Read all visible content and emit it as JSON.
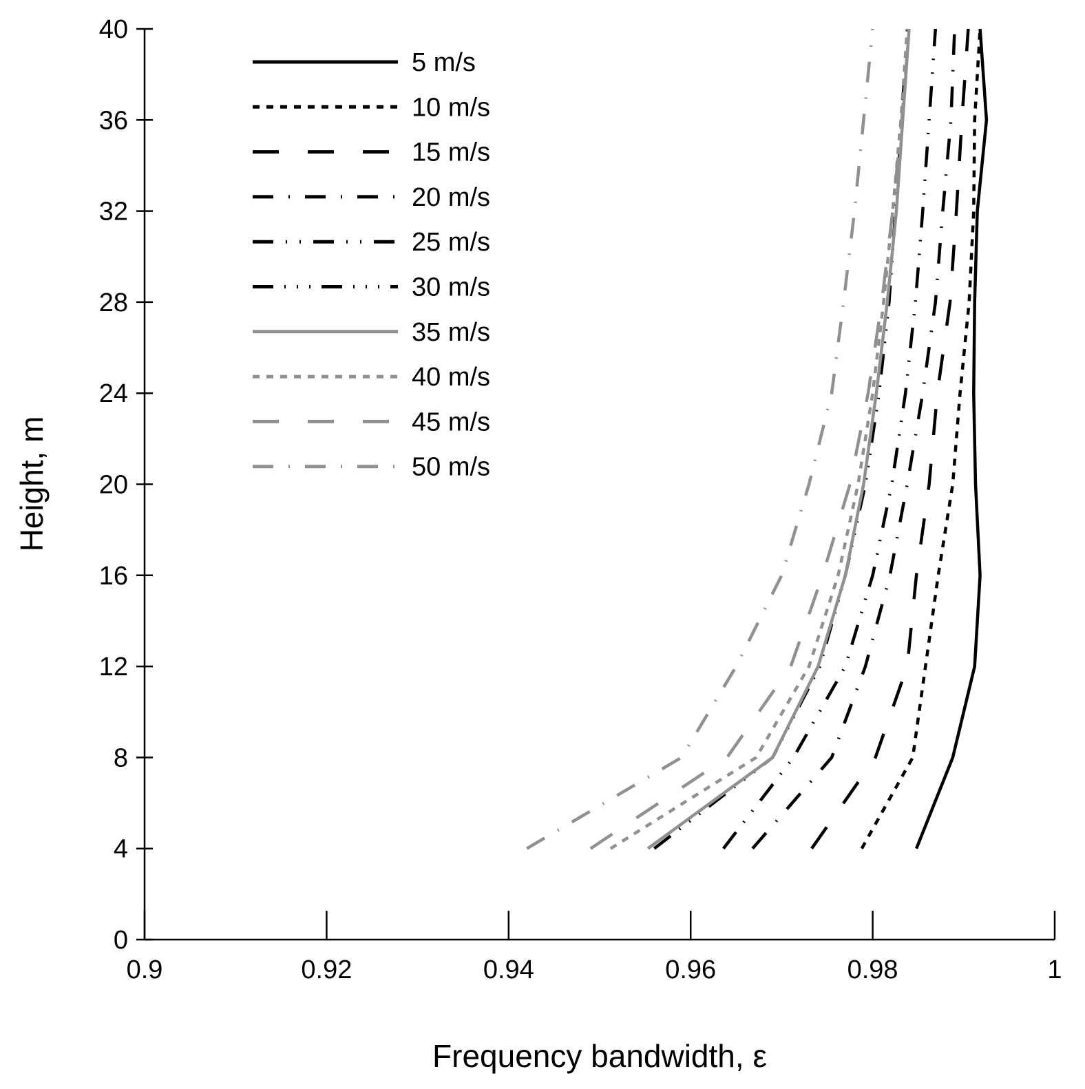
{
  "chart_data": {
    "type": "line",
    "title": "",
    "xlabel": "Frequency bandwidth, ε",
    "ylabel": "Height, m",
    "xlim": [
      0.9,
      1.0
    ],
    "ylim": [
      0,
      40
    ],
    "grid": false,
    "legend_position": "top-left",
    "x_ticks": [
      0.9,
      0.92,
      0.94,
      0.96,
      0.98,
      1.0
    ],
    "x_tick_labels": [
      "0.9",
      "0.92",
      "0.94",
      "0.96",
      "0.98",
      "1"
    ],
    "y_ticks": [
      0,
      4,
      8,
      12,
      16,
      20,
      24,
      28,
      32,
      36,
      40
    ],
    "y_tick_labels": [
      "0",
      "4",
      "8",
      "12",
      "16",
      "20",
      "24",
      "28",
      "32",
      "36",
      "40"
    ],
    "series": [
      {
        "name": "5 m/s",
        "color": "#000000",
        "dash": "solid",
        "height": [
          4,
          8,
          12,
          16,
          20,
          24,
          28,
          32,
          36,
          40
        ],
        "values": [
          0.9848,
          0.9888,
          0.9912,
          0.9918,
          0.9913,
          0.9911,
          0.9912,
          0.9915,
          0.9925,
          0.9918
        ]
      },
      {
        "name": "10 m/s",
        "color": "#000000",
        "dash": "short-dash",
        "height": [
          4,
          8,
          12,
          16,
          20,
          24,
          28,
          32,
          36,
          40
        ],
        "values": [
          0.9788,
          0.9844,
          0.9858,
          0.9872,
          0.9888,
          0.9896,
          0.9906,
          0.9911,
          0.9912,
          0.9918
        ]
      },
      {
        "name": "15 m/s",
        "color": "#000000",
        "dash": "long-dash",
        "height": [
          4,
          8,
          12,
          16,
          20,
          24,
          28,
          32,
          36,
          40
        ],
        "values": [
          0.9733,
          0.9803,
          0.9838,
          0.9848,
          0.9862,
          0.9871,
          0.9885,
          0.9892,
          0.9898,
          0.9905
        ]
      },
      {
        "name": "20 m/s",
        "color": "#000000",
        "dash": "dash-dot",
        "height": [
          4,
          8,
          12,
          16,
          20,
          24,
          28,
          32,
          36,
          40
        ],
        "values": [
          0.9668,
          0.9755,
          0.9792,
          0.9819,
          0.9838,
          0.9855,
          0.9869,
          0.9877,
          0.9886,
          0.989
        ]
      },
      {
        "name": "25 m/s",
        "color": "#000000",
        "dash": "dash-dot-dot",
        "height": [
          4,
          8,
          12,
          16,
          20,
          24,
          28,
          32,
          36,
          40
        ],
        "values": [
          0.9636,
          0.9713,
          0.977,
          0.98,
          0.9821,
          0.9836,
          0.9847,
          0.9855,
          0.9862,
          0.9869
        ]
      },
      {
        "name": "30 m/s",
        "color": "#000000",
        "dash": "dash-dot-dot-dot",
        "height": [
          4,
          8,
          12,
          16,
          20,
          24,
          28,
          32,
          36,
          40
        ],
        "values": [
          0.956,
          0.969,
          0.9742,
          0.977,
          0.9792,
          0.9807,
          0.9818,
          0.9825,
          0.9832,
          0.9838
        ]
      },
      {
        "name": "35 m/s",
        "color": "#909090",
        "dash": "solid",
        "height": [
          4,
          8,
          12,
          16,
          20,
          24,
          28,
          32,
          36,
          40
        ],
        "values": [
          0.9553,
          0.969,
          0.974,
          0.977,
          0.979,
          0.9804,
          0.9816,
          0.9826,
          0.9833,
          0.984
        ]
      },
      {
        "name": "40 m/s",
        "color": "#909090",
        "dash": "short-dash",
        "height": [
          4,
          8,
          12,
          16,
          20,
          24,
          28,
          32,
          36,
          40
        ],
        "values": [
          0.9512,
          0.9672,
          0.973,
          0.9762,
          0.9784,
          0.98,
          0.9812,
          0.9822,
          0.9831,
          0.9838
        ]
      },
      {
        "name": "45 m/s",
        "color": "#909090",
        "dash": "long-dash",
        "height": [
          4,
          8,
          12,
          16,
          20,
          24,
          28,
          32,
          36,
          40
        ],
        "values": [
          0.949,
          0.964,
          0.971,
          0.9745,
          0.9775,
          0.9795,
          0.981,
          0.9822,
          0.9832,
          0.984
        ]
      },
      {
        "name": "50 m/s",
        "color": "#909090",
        "dash": "dash-dot",
        "height": [
          4,
          8,
          12,
          16,
          20,
          24,
          28,
          32,
          36,
          40
        ],
        "values": [
          0.942,
          0.959,
          0.965,
          0.97,
          0.973,
          0.9755,
          0.9768,
          0.978,
          0.979,
          0.98
        ]
      }
    ]
  }
}
